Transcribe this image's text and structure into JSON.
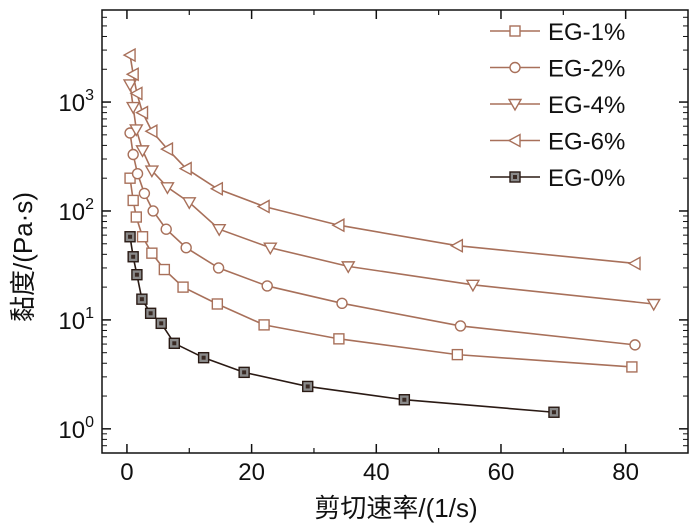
{
  "chart_data": {
    "type": "line",
    "title": "",
    "xlabel": "剪切速率/(1/s)",
    "ylabel": "黏度/(Pa·s)",
    "xscale": "linear",
    "yscale": "log",
    "xlim": [
      -4,
      90
    ],
    "ylim": [
      0.6,
      7000
    ],
    "xticks": [
      0,
      20,
      40,
      60,
      80
    ],
    "xtick_labels": [
      "0",
      "20",
      "40",
      "60",
      "80"
    ],
    "yticks": [
      1,
      10,
      100,
      1000
    ],
    "ytick_labels": [
      {
        "base": "10",
        "exp": "0"
      },
      {
        "base": "10",
        "exp": "1"
      },
      {
        "base": "10",
        "exp": "2"
      },
      {
        "base": "10",
        "exp": "3"
      }
    ],
    "legend_position": "top-right",
    "series": [
      {
        "name": "EG-1%",
        "marker": "square",
        "color": "#a8705a",
        "filled": false,
        "x": [
          0.5,
          1.0,
          1.5,
          2.5,
          4.0,
          6.0,
          9.0,
          14.5,
          22.0,
          34.0,
          53.0,
          81.0
        ],
        "y": [
          200,
          125,
          88,
          58,
          41,
          29,
          20,
          14,
          9,
          6.7,
          4.8,
          3.7
        ]
      },
      {
        "name": "EG-2%",
        "marker": "circle",
        "color": "#a8705a",
        "filled": false,
        "x": [
          0.5,
          1.0,
          1.7,
          2.8,
          4.2,
          6.3,
          9.5,
          14.7,
          22.5,
          34.5,
          53.5,
          81.5
        ],
        "y": [
          520,
          330,
          220,
          145,
          100,
          68,
          46,
          30,
          20.5,
          14.2,
          8.8,
          5.9
        ]
      },
      {
        "name": "EG-4%",
        "marker": "triangle-down",
        "color": "#a8705a",
        "filled": false,
        "x": [
          0.5,
          1.0,
          1.5,
          2.5,
          4.0,
          6.5,
          10.0,
          14.8,
          23.0,
          35.5,
          55.5,
          84.5
        ],
        "y": [
          1450,
          900,
          560,
          360,
          235,
          165,
          120,
          68,
          46,
          31,
          21,
          14
        ]
      },
      {
        "name": "EG-6%",
        "marker": "triangle-left",
        "color": "#a8705a",
        "filled": false,
        "x": [
          0.5,
          1.0,
          1.6,
          2.5,
          4.0,
          6.5,
          9.5,
          14.5,
          22.0,
          34.0,
          53.0,
          81.5
        ],
        "y": [
          2700,
          1800,
          1200,
          800,
          540,
          370,
          245,
          160,
          110,
          74,
          48,
          33
        ]
      },
      {
        "name": "EG-0%",
        "marker": "square",
        "color": "#2a1a14",
        "filled": true,
        "x": [
          0.5,
          1.0,
          1.6,
          2.4,
          3.8,
          5.5,
          7.6,
          12.3,
          18.8,
          29.0,
          44.5,
          68.5
        ],
        "y": [
          58,
          38,
          26,
          15.5,
          11.5,
          9.3,
          6.1,
          4.5,
          3.3,
          2.45,
          1.85,
          1.42
        ]
      }
    ]
  }
}
